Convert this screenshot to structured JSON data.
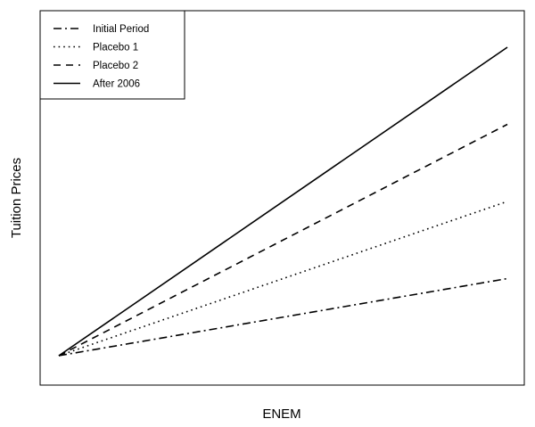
{
  "chart_data": {
    "type": "line",
    "title": "",
    "xlabel": "ENEM",
    "ylabel": "Tuition Prices",
    "x_ticks_shown": false,
    "y_ticks_shown": false,
    "grid": false,
    "legend_position": "top-left",
    "xlim": [
      0,
      1
    ],
    "ylim": [
      0,
      1
    ],
    "x": [
      0,
      1
    ],
    "series": [
      {
        "name": "Initial Period",
        "values": [
          0,
          0.25
        ],
        "dash": "dashdot"
      },
      {
        "name": "Placebo 1",
        "values": [
          0,
          0.5
        ],
        "dash": "dotted"
      },
      {
        "name": "Placebo 2",
        "values": [
          0,
          0.75
        ],
        "dash": "dashed"
      },
      {
        "name": "After 2006",
        "values": [
          0,
          1.0
        ],
        "dash": "solid"
      }
    ]
  }
}
